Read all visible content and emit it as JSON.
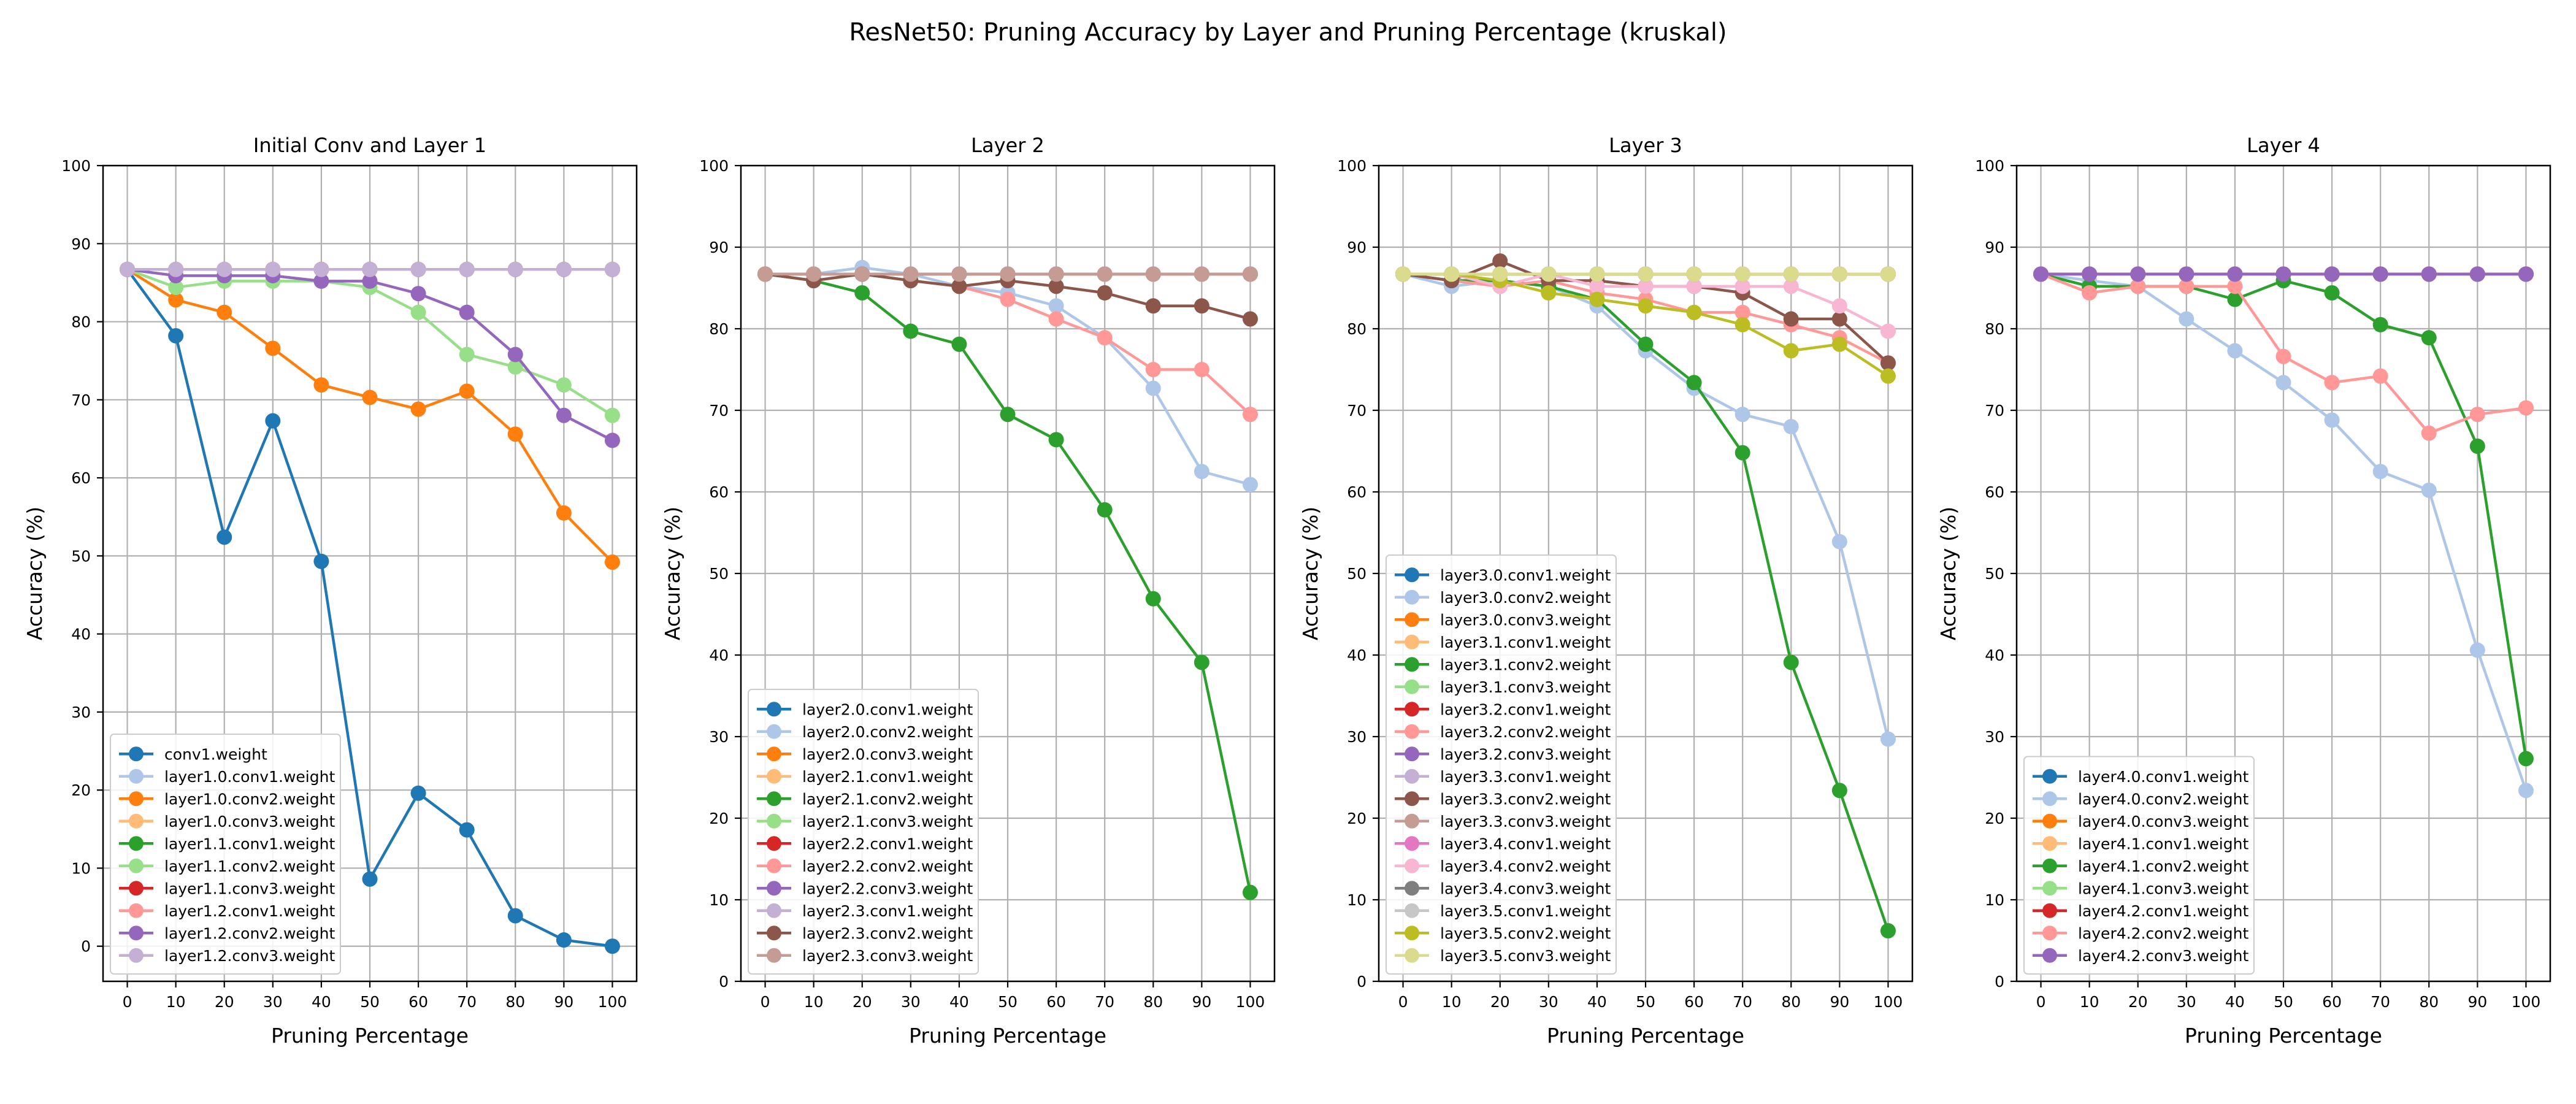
{
  "figure": {
    "suptitle": "ResNet50: Pruning Accuracy by Layer and Pruning Percentage (kruskal)"
  },
  "chart_data": [
    {
      "type": "line",
      "title": "Initial Conv and Layer 1",
      "xlabel": "Pruning Percentage",
      "ylabel": "Accuracy (%)",
      "x": [
        0,
        10,
        20,
        30,
        40,
        50,
        60,
        70,
        80,
        90,
        100
      ],
      "xlim": [
        -5,
        105
      ],
      "ylim": [
        -4.5,
        100
      ],
      "yticks": [
        0,
        10,
        20,
        30,
        40,
        50,
        60,
        70,
        80,
        90,
        100
      ],
      "grid": true,
      "legend_loc": "lower left",
      "series": [
        {
          "name": "conv1.weight",
          "color": "#1f77b4",
          "values": [
            86.7,
            78.2,
            52.4,
            67.3,
            49.3,
            8.6,
            19.6,
            14.9,
            3.9,
            0.8,
            0.0
          ]
        },
        {
          "name": "layer1.0.conv1.weight",
          "color": "#aec7e8",
          "values": [
            86.7,
            86.7,
            86.7,
            86.7,
            86.7,
            86.7,
            86.7,
            86.7,
            86.7,
            86.7,
            86.7
          ]
        },
        {
          "name": "layer1.0.conv2.weight",
          "color": "#ff7f0e",
          "values": [
            86.7,
            82.8,
            81.2,
            76.6,
            71.9,
            70.3,
            68.8,
            71.1,
            65.6,
            55.5,
            49.2
          ]
        },
        {
          "name": "layer1.0.conv3.weight",
          "color": "#ffbb78",
          "values": [
            86.7,
            86.7,
            86.7,
            86.7,
            86.7,
            86.7,
            86.7,
            86.7,
            86.7,
            86.7,
            86.7
          ]
        },
        {
          "name": "layer1.1.conv1.weight",
          "color": "#2ca02c",
          "values": [
            86.7,
            86.7,
            86.7,
            86.7,
            86.7,
            86.7,
            86.7,
            86.7,
            86.7,
            86.7,
            86.7
          ]
        },
        {
          "name": "layer1.1.conv2.weight",
          "color": "#98df8a",
          "values": [
            86.7,
            84.4,
            85.2,
            85.2,
            85.2,
            84.4,
            81.2,
            75.8,
            74.2,
            71.9,
            68.0
          ]
        },
        {
          "name": "layer1.1.conv3.weight",
          "color": "#d62728",
          "values": [
            86.7,
            86.7,
            86.7,
            86.7,
            86.7,
            86.7,
            86.7,
            86.7,
            86.7,
            86.7,
            86.7
          ]
        },
        {
          "name": "layer1.2.conv1.weight",
          "color": "#ff9896",
          "values": [
            86.7,
            86.7,
            86.7,
            86.7,
            86.7,
            86.7,
            86.7,
            86.7,
            86.7,
            86.7,
            86.7
          ]
        },
        {
          "name": "layer1.2.conv2.weight",
          "color": "#9467bd",
          "values": [
            86.7,
            85.9,
            85.9,
            85.9,
            85.2,
            85.2,
            83.6,
            81.2,
            75.8,
            68.0,
            64.8
          ]
        },
        {
          "name": "layer1.2.conv3.weight",
          "color": "#c5b0d5",
          "values": [
            86.7,
            86.7,
            86.7,
            86.7,
            86.7,
            86.7,
            86.7,
            86.7,
            86.7,
            86.7,
            86.7
          ]
        }
      ]
    },
    {
      "type": "line",
      "title": "Layer 2",
      "xlabel": "Pruning Percentage",
      "ylabel": "Accuracy (%)",
      "x": [
        0,
        10,
        20,
        30,
        40,
        50,
        60,
        70,
        80,
        90,
        100
      ],
      "xlim": [
        -5,
        105
      ],
      "ylim": [
        0,
        100
      ],
      "yticks": [
        0,
        10,
        20,
        30,
        40,
        50,
        60,
        70,
        80,
        90,
        100
      ],
      "grid": true,
      "legend_loc": "lower left",
      "series": [
        {
          "name": "layer2.0.conv1.weight",
          "color": "#1f77b4",
          "values": [
            86.7,
            86.7,
            86.7,
            86.7,
            86.7,
            86.7,
            86.7,
            86.7,
            86.7,
            86.7,
            86.7
          ]
        },
        {
          "name": "layer2.0.conv2.weight",
          "color": "#aec7e8",
          "values": [
            86.7,
            86.7,
            87.5,
            86.7,
            85.2,
            84.4,
            82.8,
            78.9,
            72.7,
            62.5,
            60.9
          ]
        },
        {
          "name": "layer2.0.conv3.weight",
          "color": "#ff7f0e",
          "values": [
            86.7,
            86.7,
            86.7,
            86.7,
            86.7,
            86.7,
            86.7,
            86.7,
            86.7,
            86.7,
            86.7
          ]
        },
        {
          "name": "layer2.1.conv1.weight",
          "color": "#ffbb78",
          "values": [
            86.7,
            86.7,
            86.7,
            86.7,
            86.7,
            86.7,
            86.7,
            86.7,
            86.7,
            86.7,
            86.7
          ]
        },
        {
          "name": "layer2.1.conv2.weight",
          "color": "#2ca02c",
          "values": [
            86.7,
            85.9,
            84.4,
            79.7,
            78.1,
            69.5,
            66.4,
            57.8,
            46.9,
            39.1,
            10.9
          ]
        },
        {
          "name": "layer2.1.conv3.weight",
          "color": "#98df8a",
          "values": [
            86.7,
            86.7,
            86.7,
            86.7,
            86.7,
            86.7,
            86.7,
            86.7,
            86.7,
            86.7,
            86.7
          ]
        },
        {
          "name": "layer2.2.conv1.weight",
          "color": "#d62728",
          "values": [
            86.7,
            86.7,
            86.7,
            86.7,
            86.7,
            86.7,
            86.7,
            86.7,
            86.7,
            86.7,
            86.7
          ]
        },
        {
          "name": "layer2.2.conv2.weight",
          "color": "#ff9896",
          "values": [
            86.7,
            86.7,
            86.7,
            85.9,
            85.2,
            83.6,
            81.2,
            78.9,
            75.0,
            75.0,
            69.5
          ]
        },
        {
          "name": "layer2.2.conv3.weight",
          "color": "#9467bd",
          "values": [
            86.7,
            86.7,
            86.7,
            86.7,
            86.7,
            86.7,
            86.7,
            86.7,
            86.7,
            86.7,
            86.7
          ]
        },
        {
          "name": "layer2.3.conv1.weight",
          "color": "#c5b0d5",
          "values": [
            86.7,
            86.7,
            86.7,
            86.7,
            86.7,
            86.7,
            86.7,
            86.7,
            86.7,
            86.7,
            86.7
          ]
        },
        {
          "name": "layer2.3.conv2.weight",
          "color": "#8c564b",
          "values": [
            86.7,
            85.9,
            86.7,
            85.9,
            85.2,
            85.9,
            85.2,
            84.4,
            82.8,
            82.8,
            81.2
          ]
        },
        {
          "name": "layer2.3.conv3.weight",
          "color": "#c49c94",
          "values": [
            86.7,
            86.7,
            86.7,
            86.7,
            86.7,
            86.7,
            86.7,
            86.7,
            86.7,
            86.7,
            86.7
          ]
        }
      ]
    },
    {
      "type": "line",
      "title": "Layer 3",
      "xlabel": "Pruning Percentage",
      "ylabel": "Accuracy (%)",
      "x": [
        0,
        10,
        20,
        30,
        40,
        50,
        60,
        70,
        80,
        90,
        100
      ],
      "xlim": [
        -5,
        105
      ],
      "ylim": [
        0,
        100
      ],
      "yticks": [
        0,
        10,
        20,
        30,
        40,
        50,
        60,
        70,
        80,
        90,
        100
      ],
      "grid": true,
      "legend_loc": "lower left",
      "series": [
        {
          "name": "layer3.0.conv1.weight",
          "color": "#1f77b4",
          "values": [
            86.7,
            86.7,
            86.7,
            86.7,
            86.7,
            86.7,
            86.7,
            86.7,
            86.7,
            86.7,
            86.7
          ]
        },
        {
          "name": "layer3.0.conv2.weight",
          "color": "#aec7e8",
          "values": [
            86.7,
            85.2,
            85.9,
            85.2,
            82.8,
            77.3,
            72.7,
            69.5,
            68.0,
            53.9,
            29.7
          ]
        },
        {
          "name": "layer3.0.conv3.weight",
          "color": "#ff7f0e",
          "values": [
            86.7,
            86.7,
            86.7,
            86.7,
            86.7,
            86.7,
            86.7,
            86.7,
            86.7,
            86.7,
            86.7
          ]
        },
        {
          "name": "layer3.1.conv1.weight",
          "color": "#ffbb78",
          "values": [
            86.7,
            86.7,
            86.7,
            86.7,
            86.7,
            86.7,
            86.7,
            86.7,
            86.7,
            86.7,
            86.7
          ]
        },
        {
          "name": "layer3.1.conv2.weight",
          "color": "#2ca02c",
          "values": [
            86.7,
            85.9,
            85.9,
            85.2,
            83.6,
            78.1,
            73.4,
            64.8,
            39.1,
            23.4,
            6.2
          ]
        },
        {
          "name": "layer3.1.conv3.weight",
          "color": "#98df8a",
          "values": [
            86.7,
            86.7,
            86.7,
            86.7,
            86.7,
            86.7,
            86.7,
            86.7,
            86.7,
            86.7,
            86.7
          ]
        },
        {
          "name": "layer3.2.conv1.weight",
          "color": "#d62728",
          "values": [
            86.7,
            86.7,
            86.7,
            86.7,
            86.7,
            86.7,
            86.7,
            86.7,
            86.7,
            86.7,
            86.7
          ]
        },
        {
          "name": "layer3.2.conv2.weight",
          "color": "#ff9896",
          "values": [
            86.7,
            85.9,
            85.2,
            85.9,
            84.4,
            83.6,
            82.0,
            82.0,
            80.5,
            78.9,
            75.8
          ]
        },
        {
          "name": "layer3.2.conv3.weight",
          "color": "#9467bd",
          "values": [
            86.7,
            86.7,
            86.7,
            86.7,
            86.7,
            86.7,
            86.7,
            86.7,
            86.7,
            86.7,
            86.7
          ]
        },
        {
          "name": "layer3.3.conv1.weight",
          "color": "#c5b0d5",
          "values": [
            86.7,
            86.7,
            86.7,
            86.7,
            86.7,
            86.7,
            86.7,
            86.7,
            86.7,
            86.7,
            86.7
          ]
        },
        {
          "name": "layer3.3.conv2.weight",
          "color": "#8c564b",
          "values": [
            86.7,
            85.9,
            88.3,
            85.9,
            85.9,
            85.2,
            85.2,
            84.4,
            81.2,
            81.2,
            75.8
          ]
        },
        {
          "name": "layer3.3.conv3.weight",
          "color": "#c49c94",
          "values": [
            86.7,
            86.7,
            86.7,
            86.7,
            86.7,
            86.7,
            86.7,
            86.7,
            86.7,
            86.7,
            86.7
          ]
        },
        {
          "name": "layer3.4.conv1.weight",
          "color": "#e377c2",
          "values": [
            86.7,
            86.7,
            86.7,
            86.7,
            86.7,
            86.7,
            86.7,
            86.7,
            86.7,
            86.7,
            86.7
          ]
        },
        {
          "name": "layer3.4.conv2.weight",
          "color": "#f7b6d2",
          "values": [
            86.7,
            86.7,
            85.2,
            86.7,
            85.2,
            85.2,
            85.2,
            85.2,
            85.2,
            82.8,
            79.7
          ]
        },
        {
          "name": "layer3.4.conv3.weight",
          "color": "#7f7f7f",
          "values": [
            86.7,
            86.7,
            86.7,
            86.7,
            86.7,
            86.7,
            86.7,
            86.7,
            86.7,
            86.7,
            86.7
          ]
        },
        {
          "name": "layer3.5.conv1.weight",
          "color": "#c7c7c7",
          "values": [
            86.7,
            86.7,
            86.7,
            86.7,
            86.7,
            86.7,
            86.7,
            86.7,
            86.7,
            86.7,
            86.7
          ]
        },
        {
          "name": "layer3.5.conv2.weight",
          "color": "#bcbd22",
          "values": [
            86.7,
            86.7,
            85.9,
            84.4,
            83.6,
            82.8,
            82.0,
            80.5,
            77.3,
            78.1,
            74.2
          ]
        },
        {
          "name": "layer3.5.conv3.weight",
          "color": "#dbdb8d",
          "values": [
            86.7,
            86.7,
            86.7,
            86.7,
            86.7,
            86.7,
            86.7,
            86.7,
            86.7,
            86.7,
            86.7
          ]
        }
      ]
    },
    {
      "type": "line",
      "title": "Layer 4",
      "xlabel": "Pruning Percentage",
      "ylabel": "Accuracy (%)",
      "x": [
        0,
        10,
        20,
        30,
        40,
        50,
        60,
        70,
        80,
        90,
        100
      ],
      "xlim": [
        -5,
        105
      ],
      "ylim": [
        0,
        100
      ],
      "yticks": [
        0,
        10,
        20,
        30,
        40,
        50,
        60,
        70,
        80,
        90,
        100
      ],
      "grid": true,
      "legend_loc": "lower left",
      "series": [
        {
          "name": "layer4.0.conv1.weight",
          "color": "#1f77b4",
          "values": [
            86.7,
            86.7,
            86.7,
            86.7,
            86.7,
            86.7,
            86.7,
            86.7,
            86.7,
            86.7,
            86.7
          ]
        },
        {
          "name": "layer4.0.conv2.weight",
          "color": "#aec7e8",
          "values": [
            86.7,
            85.9,
            85.2,
            81.2,
            77.3,
            73.4,
            68.8,
            62.5,
            60.2,
            40.6,
            23.4
          ]
        },
        {
          "name": "layer4.0.conv3.weight",
          "color": "#ff7f0e",
          "values": [
            86.7,
            86.7,
            86.7,
            86.7,
            86.7,
            86.7,
            86.7,
            86.7,
            86.7,
            86.7,
            86.7
          ]
        },
        {
          "name": "layer4.1.conv1.weight",
          "color": "#ffbb78",
          "values": [
            86.7,
            86.7,
            86.7,
            86.7,
            86.7,
            86.7,
            86.7,
            86.7,
            86.7,
            86.7,
            86.7
          ]
        },
        {
          "name": "layer4.1.conv2.weight",
          "color": "#2ca02c",
          "values": [
            86.7,
            85.2,
            85.2,
            85.2,
            83.6,
            85.9,
            84.4,
            80.5,
            78.9,
            65.6,
            27.3
          ]
        },
        {
          "name": "layer4.1.conv3.weight",
          "color": "#98df8a",
          "values": [
            86.7,
            86.7,
            86.7,
            86.7,
            86.7,
            86.7,
            86.7,
            86.7,
            86.7,
            86.7,
            86.7
          ]
        },
        {
          "name": "layer4.2.conv1.weight",
          "color": "#d62728",
          "values": [
            86.7,
            86.7,
            86.7,
            86.7,
            86.7,
            86.7,
            86.7,
            86.7,
            86.7,
            86.7,
            86.7
          ]
        },
        {
          "name": "layer4.2.conv2.weight",
          "color": "#ff9896",
          "values": [
            86.7,
            84.4,
            85.2,
            85.2,
            85.2,
            76.6,
            73.4,
            74.2,
            67.2,
            69.5,
            70.3
          ]
        },
        {
          "name": "layer4.2.conv3.weight",
          "color": "#9467bd",
          "values": [
            86.7,
            86.7,
            86.7,
            86.7,
            86.7,
            86.7,
            86.7,
            86.7,
            86.7,
            86.7,
            86.7
          ]
        }
      ]
    }
  ]
}
